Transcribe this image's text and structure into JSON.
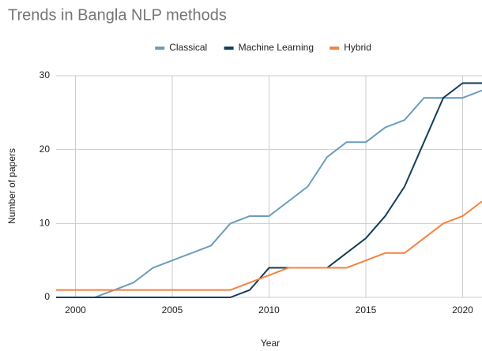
{
  "chart_data": {
    "type": "line",
    "title": "Trends in Bangla NLP methods",
    "x_label": "Year",
    "y_label": "Number of papers",
    "x": [
      1999,
      2000,
      2001,
      2002,
      2003,
      2004,
      2005,
      2006,
      2007,
      2008,
      2009,
      2010,
      2011,
      2012,
      2013,
      2014,
      2015,
      2016,
      2017,
      2018,
      2019,
      2020,
      2021
    ],
    "series": [
      {
        "name": "Classical",
        "color": "#6a9dbd",
        "values": [
          0,
          0,
          0,
          1,
          2,
          4,
          5,
          6,
          7,
          10,
          11,
          11,
          13,
          15,
          19,
          21,
          21,
          23,
          24,
          27,
          27,
          27,
          28
        ]
      },
      {
        "name": "Machine Learning",
        "color": "#123f5a",
        "values": [
          0,
          0,
          0,
          0,
          0,
          0,
          0,
          0,
          0,
          0,
          1,
          4,
          4,
          4,
          4,
          6,
          8,
          11,
          15,
          21,
          27,
          29,
          29
        ]
      },
      {
        "name": "Hybrid",
        "color": "#f7813e",
        "values": [
          1,
          1,
          1,
          1,
          1,
          1,
          1,
          1,
          1,
          1,
          2,
          3,
          4,
          4,
          4,
          4,
          5,
          6,
          6,
          8,
          10,
          11,
          13
        ]
      }
    ],
    "xlim": [
      1999,
      2021
    ],
    "xticks": [
      2000,
      2005,
      2010,
      2015,
      2020
    ],
    "ylim": [
      0,
      30
    ],
    "yticks": [
      0,
      10,
      20,
      30
    ],
    "grid": true,
    "legend": "top"
  }
}
